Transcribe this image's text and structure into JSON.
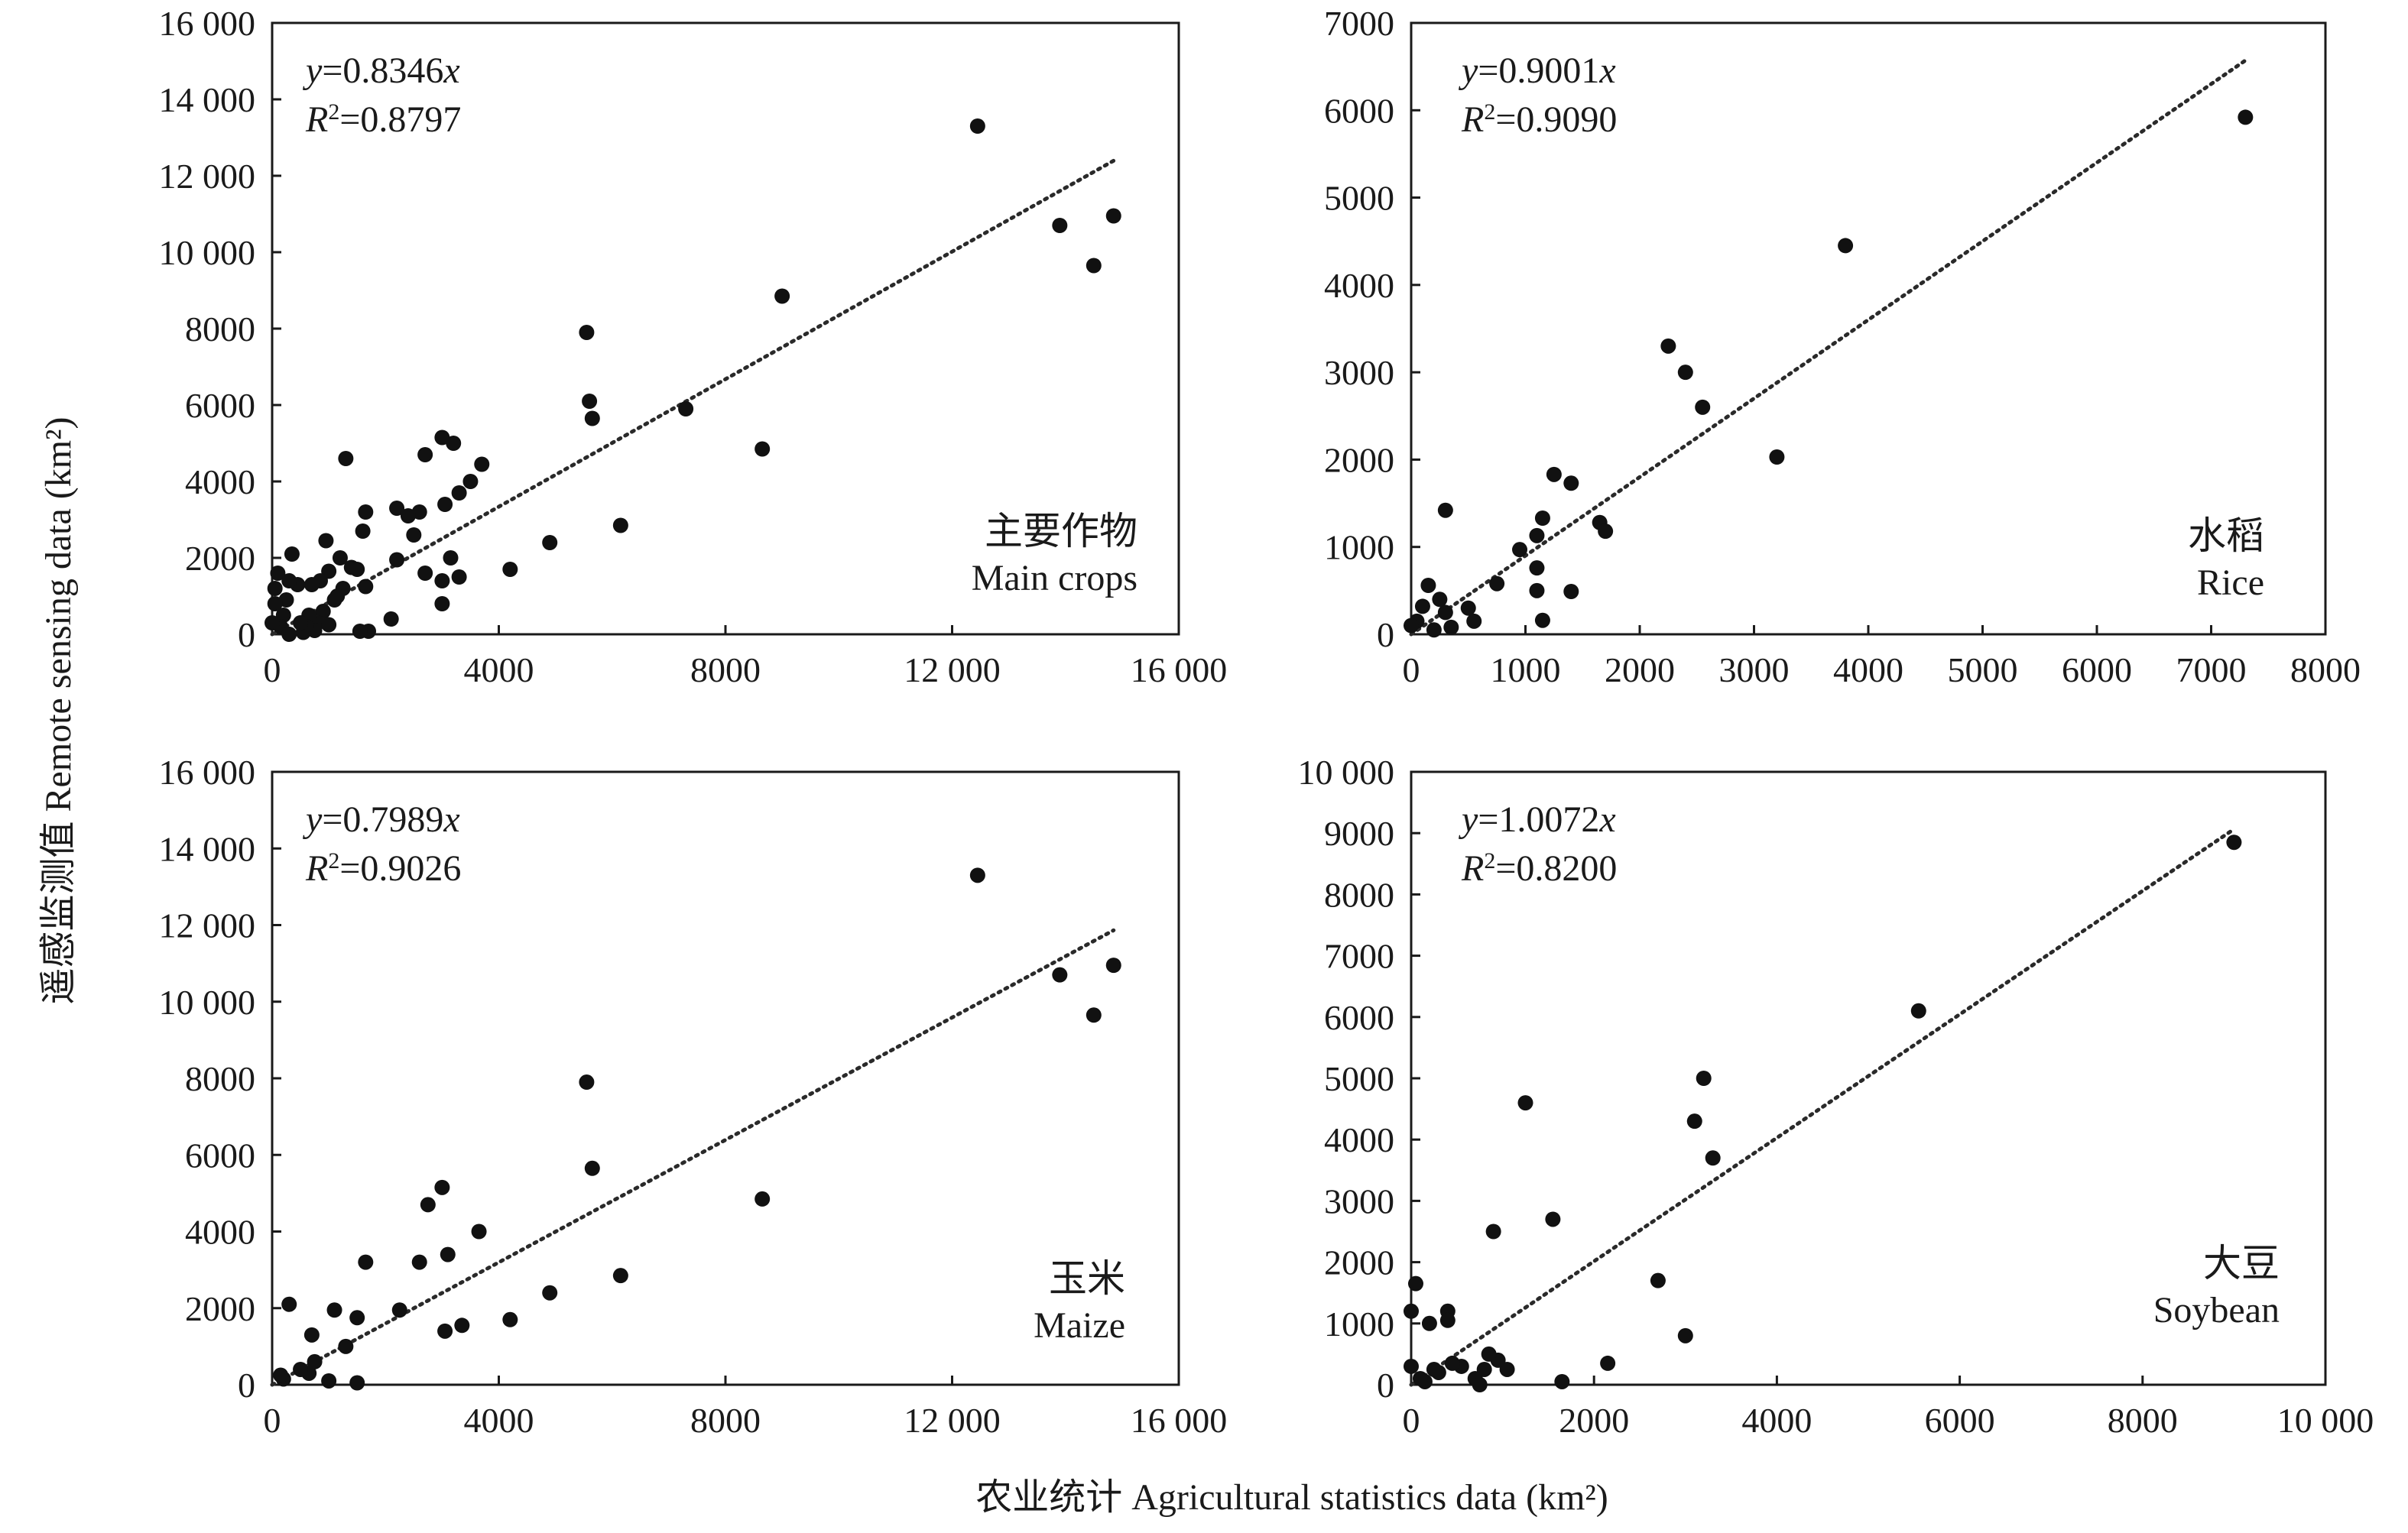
{
  "figure": {
    "ylabel": "遥感监测值 Remote sensing data (km²)",
    "xlabel": "农业统计 Agricultural statistics data (km²)"
  },
  "chart_data": [
    {
      "type": "scatter",
      "id": "main",
      "label_cn": "主要作物",
      "label_en": "Main crops",
      "equation": "y=0.8346x",
      "r2": "R²=0.8797",
      "slope": 0.8346,
      "xlim": [
        0,
        16000
      ],
      "ylim": [
        0,
        16000
      ],
      "xticks": [
        0,
        4000,
        8000,
        12000,
        16000
      ],
      "xtick_labels": [
        "0",
        "4000",
        "8000",
        "12 000",
        "16 000"
      ],
      "yticks": [
        0,
        2000,
        4000,
        6000,
        8000,
        10000,
        12000,
        14000,
        16000
      ],
      "ytick_labels": [
        "0",
        "2000",
        "4000",
        "6000",
        "8000",
        "10 000",
        "12 000",
        "14 000",
        "16 000"
      ],
      "points": [
        [
          12450,
          13300
        ],
        [
          13900,
          10700
        ],
        [
          14500,
          9650
        ],
        [
          14850,
          10950
        ],
        [
          9000,
          8850
        ],
        [
          8650,
          4850
        ],
        [
          7300,
          5900
        ],
        [
          6150,
          2850
        ],
        [
          5550,
          7900
        ],
        [
          5600,
          6100
        ],
        [
          5650,
          5650
        ],
        [
          4900,
          2400
        ],
        [
          4200,
          1700
        ],
        [
          3700,
          4450
        ],
        [
          3500,
          4000
        ],
        [
          3300,
          3700
        ],
        [
          3200,
          5000
        ],
        [
          3050,
          3400
        ],
        [
          3000,
          5150
        ],
        [
          3150,
          2000
        ],
        [
          3000,
          1400
        ],
        [
          3300,
          1500
        ],
        [
          3000,
          800
        ],
        [
          2700,
          4700
        ],
        [
          2600,
          3200
        ],
        [
          2500,
          2600
        ],
        [
          2400,
          3100
        ],
        [
          2200,
          3300
        ],
        [
          2200,
          1950
        ],
        [
          2100,
          400
        ],
        [
          2700,
          1600
        ],
        [
          1650,
          3200
        ],
        [
          1600,
          2700
        ],
        [
          1650,
          1250
        ],
        [
          1400,
          1750
        ],
        [
          1500,
          1700
        ],
        [
          1300,
          4600
        ],
        [
          1250,
          1200
        ],
        [
          1200,
          2000
        ],
        [
          1100,
          900
        ],
        [
          950,
          2450
        ],
        [
          1000,
          1650
        ],
        [
          900,
          600
        ],
        [
          850,
          1400
        ],
        [
          800,
          300
        ],
        [
          700,
          1300
        ],
        [
          750,
          100
        ],
        [
          650,
          500
        ],
        [
          600,
          200
        ],
        [
          550,
          50
        ],
        [
          500,
          300
        ],
        [
          450,
          1300
        ],
        [
          350,
          2100
        ],
        [
          300,
          1400
        ],
        [
          250,
          900
        ],
        [
          200,
          500
        ],
        [
          150,
          200
        ],
        [
          100,
          1600
        ],
        [
          50,
          1200
        ],
        [
          50,
          800
        ],
        [
          0,
          300
        ],
        [
          1700,
          80
        ],
        [
          1550,
          80
        ],
        [
          1000,
          250
        ],
        [
          1150,
          1000
        ],
        [
          300,
          0
        ]
      ]
    },
    {
      "type": "scatter",
      "id": "rice",
      "label_cn": "水稻",
      "label_en": "Rice",
      "equation": "y=0.9001x",
      "r2": "R²=0.9090",
      "slope": 0.9001,
      "xlim": [
        0,
        8000
      ],
      "ylim": [
        0,
        7000
      ],
      "xticks": [
        0,
        1000,
        2000,
        3000,
        4000,
        5000,
        6000,
        7000,
        8000
      ],
      "xtick_labels": [
        "0",
        "1000",
        "2000",
        "3000",
        "4000",
        "5000",
        "6000",
        "7000",
        "8000"
      ],
      "yticks": [
        0,
        1000,
        2000,
        3000,
        4000,
        5000,
        6000,
        7000
      ],
      "ytick_labels": [
        "0",
        "1000",
        "2000",
        "3000",
        "4000",
        "5000",
        "6000",
        "7000"
      ],
      "points": [
        [
          7300,
          5920
        ],
        [
          3800,
          4450
        ],
        [
          2250,
          3300
        ],
        [
          2400,
          3000
        ],
        [
          2550,
          2600
        ],
        [
          3200,
          2030
        ],
        [
          1250,
          1830
        ],
        [
          1400,
          1730
        ],
        [
          1650,
          1280
        ],
        [
          1700,
          1180
        ],
        [
          1150,
          1330
        ],
        [
          1100,
          1130
        ],
        [
          950,
          970
        ],
        [
          1100,
          760
        ],
        [
          1100,
          500
        ],
        [
          1400,
          490
        ],
        [
          1150,
          160
        ],
        [
          750,
          580
        ],
        [
          300,
          1420
        ],
        [
          150,
          560
        ],
        [
          300,
          250
        ],
        [
          350,
          80
        ],
        [
          100,
          320
        ],
        [
          50,
          150
        ],
        [
          0,
          100
        ],
        [
          500,
          300
        ],
        [
          550,
          150
        ],
        [
          250,
          400
        ],
        [
          200,
          50
        ]
      ]
    },
    {
      "type": "scatter",
      "id": "maize",
      "label_cn": "玉米",
      "label_en": "Maize",
      "equation": "y=0.7989x",
      "r2": "R²=0.9026",
      "slope": 0.7989,
      "xlim": [
        0,
        16000
      ],
      "ylim": [
        0,
        16000
      ],
      "xticks": [
        0,
        4000,
        8000,
        12000,
        16000
      ],
      "xtick_labels": [
        "0",
        "4000",
        "8000",
        "12 000",
        "16 000"
      ],
      "yticks": [
        0,
        2000,
        4000,
        6000,
        8000,
        10000,
        12000,
        14000,
        16000
      ],
      "ytick_labels": [
        "0",
        "2000",
        "4000",
        "6000",
        "8000",
        "10 000",
        "12 000",
        "14 000",
        "16 000"
      ],
      "points": [
        [
          12450,
          13300
        ],
        [
          13900,
          10700
        ],
        [
          14500,
          9650
        ],
        [
          14850,
          10950
        ],
        [
          8650,
          4850
        ],
        [
          6150,
          2850
        ],
        [
          5550,
          7900
        ],
        [
          5650,
          5650
        ],
        [
          4900,
          2400
        ],
        [
          4200,
          1700
        ],
        [
          3650,
          4000
        ],
        [
          3350,
          1550
        ],
        [
          3000,
          5150
        ],
        [
          3100,
          3400
        ],
        [
          3050,
          1400
        ],
        [
          2750,
          4700
        ],
        [
          2600,
          3200
        ],
        [
          2250,
          1950
        ],
        [
          1650,
          3200
        ],
        [
          1500,
          1750
        ],
        [
          1300,
          1000
        ],
        [
          1100,
          1950
        ],
        [
          1000,
          100
        ],
        [
          700,
          1300
        ],
        [
          750,
          600
        ],
        [
          650,
          300
        ],
        [
          500,
          400
        ],
        [
          300,
          2100
        ],
        [
          200,
          150
        ],
        [
          1500,
          50
        ],
        [
          150,
          250
        ]
      ]
    },
    {
      "type": "scatter",
      "id": "soybean",
      "label_cn": "大豆",
      "label_en": "Soybean",
      "equation": "y=1.0072x",
      "r2": "R²=0.8200",
      "slope": 1.0072,
      "xlim": [
        0,
        10000
      ],
      "ylim": [
        0,
        10000
      ],
      "xticks": [
        0,
        2000,
        4000,
        6000,
        8000,
        10000
      ],
      "xtick_labels": [
        "0",
        "2000",
        "4000",
        "6000",
        "8000",
        "10 000"
      ],
      "yticks": [
        0,
        1000,
        2000,
        3000,
        4000,
        5000,
        6000,
        7000,
        8000,
        9000,
        10000
      ],
      "ytick_labels": [
        "0",
        "1000",
        "2000",
        "3000",
        "4000",
        "5000",
        "6000",
        "7000",
        "8000",
        "9000",
        "10 000"
      ],
      "points": [
        [
          9000,
          8850
        ],
        [
          5550,
          6100
        ],
        [
          3200,
          5000
        ],
        [
          3100,
          4300
        ],
        [
          3300,
          3700
        ],
        [
          1250,
          4600
        ],
        [
          1550,
          2700
        ],
        [
          900,
          2500
        ],
        [
          2700,
          1700
        ],
        [
          3000,
          800
        ],
        [
          2150,
          350
        ],
        [
          1650,
          50
        ],
        [
          1050,
          250
        ],
        [
          950,
          400
        ],
        [
          850,
          500
        ],
        [
          800,
          250
        ],
        [
          700,
          100
        ],
        [
          550,
          300
        ],
        [
          450,
          350
        ],
        [
          400,
          1200
        ],
        [
          400,
          1050
        ],
        [
          300,
          200
        ],
        [
          250,
          250
        ],
        [
          200,
          1000
        ],
        [
          150,
          50
        ],
        [
          100,
          100
        ],
        [
          50,
          1650
        ],
        [
          0,
          1200
        ],
        [
          0,
          300
        ],
        [
          750,
          0
        ]
      ]
    }
  ]
}
